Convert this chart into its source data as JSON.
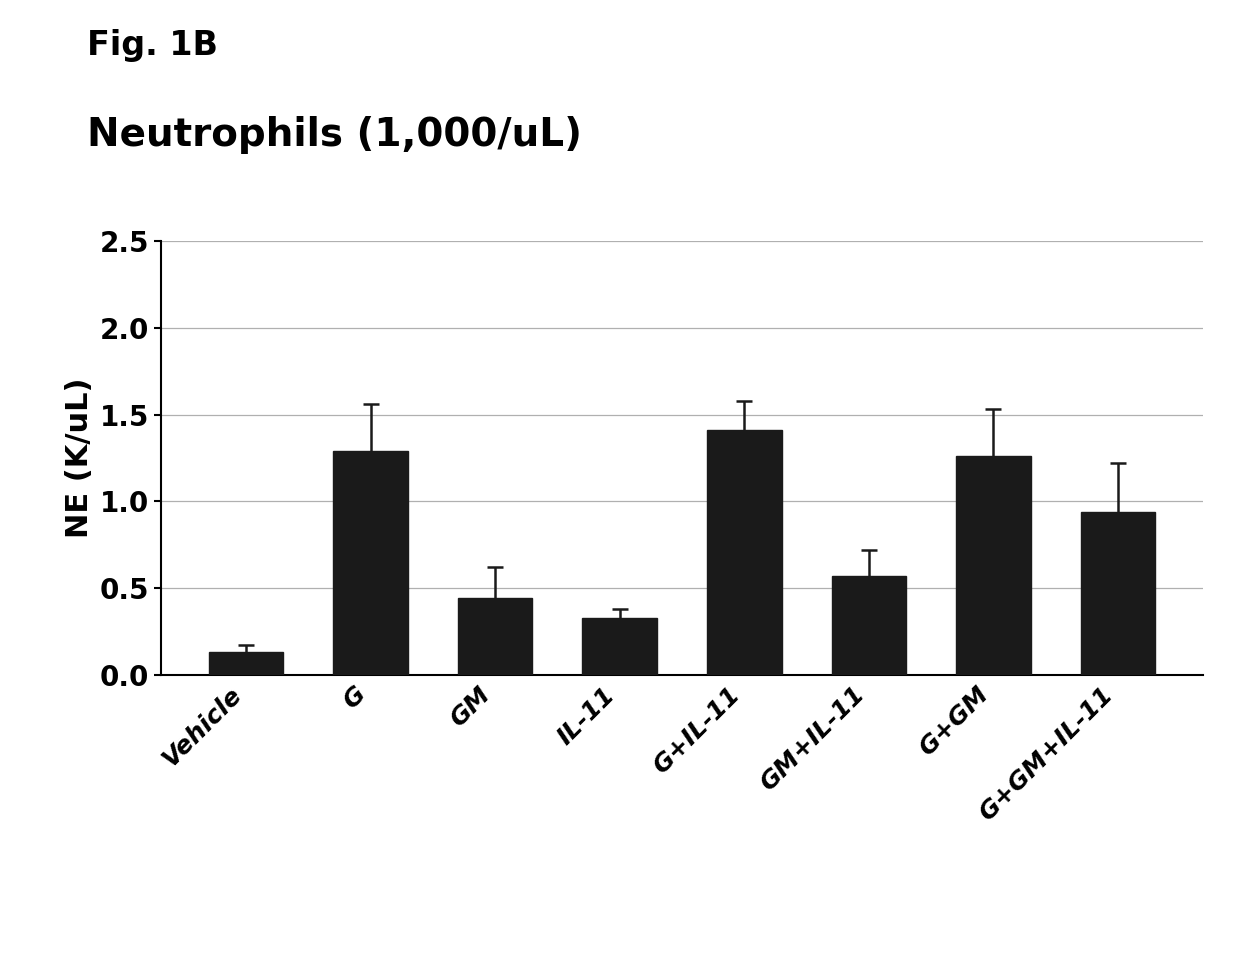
{
  "categories": [
    "Vehicle",
    "G",
    "GM",
    "IL-11",
    "G+IL-11",
    "GM+IL-11",
    "G+GM",
    "G+GM+IL-11"
  ],
  "values": [
    0.13,
    1.29,
    0.44,
    0.33,
    1.41,
    0.57,
    1.26,
    0.94
  ],
  "errors": [
    0.04,
    0.27,
    0.18,
    0.05,
    0.17,
    0.15,
    0.27,
    0.28
  ],
  "bar_color": "#1a1a1a",
  "error_color": "#1a1a1a",
  "ylabel": "NE (K/uL)",
  "chart_title": "Neutrophils (1,000/uL)",
  "fig_label": "Fig. 1B",
  "ylim": [
    0,
    2.5
  ],
  "yticks": [
    0.0,
    0.5,
    1.0,
    1.5,
    2.0,
    2.5
  ],
  "background_color": "#ffffff",
  "grid_color": "#b0b0b0",
  "chart_title_fontsize": 28,
  "fig_label_fontsize": 24,
  "axis_label_fontsize": 22,
  "tick_fontsize": 20,
  "xtick_fontsize": 18,
  "bar_width": 0.6
}
